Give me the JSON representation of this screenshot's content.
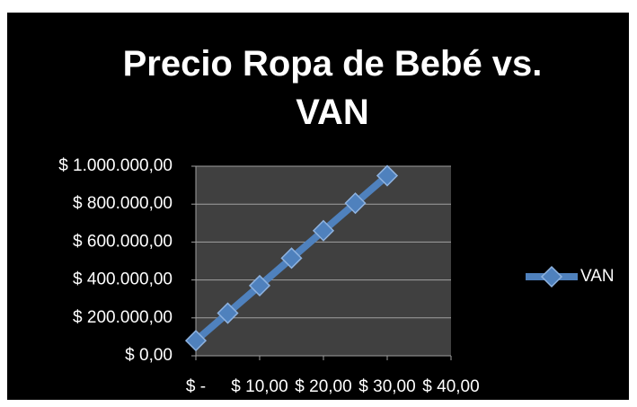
{
  "chart_data": {
    "type": "line",
    "title": "Precio Ropa de Bebé vs. VAN",
    "x": [
      0,
      5,
      10,
      15,
      20,
      25,
      30
    ],
    "series": [
      {
        "name": "VAN",
        "color": "#4f81bd",
        "values": [
          80000,
          225000,
          370000,
          515000,
          660000,
          805000,
          950000
        ]
      }
    ],
    "xlim": [
      0,
      40
    ],
    "xticks": [
      {
        "value": 0,
        "label": "$ -"
      },
      {
        "value": 10,
        "label": "$ 10,00"
      },
      {
        "value": 20,
        "label": "$ 20,00"
      },
      {
        "value": 30,
        "label": "$ 30,00"
      },
      {
        "value": 40,
        "label": "$ 40,00"
      }
    ],
    "ylim": [
      0,
      1000000
    ],
    "yticks": [
      {
        "value": 0,
        "label": "$ 0,00"
      },
      {
        "value": 200000,
        "label": "$ 200.000,00"
      },
      {
        "value": 400000,
        "label": "$ 400.000,00"
      },
      {
        "value": 600000,
        "label": "$ 600.000,00"
      },
      {
        "value": 800000,
        "label": "$ 800.000,00"
      },
      {
        "value": 1000000,
        "label": "$ 1.000.000,00"
      }
    ],
    "grid": true,
    "legend": "right"
  }
}
